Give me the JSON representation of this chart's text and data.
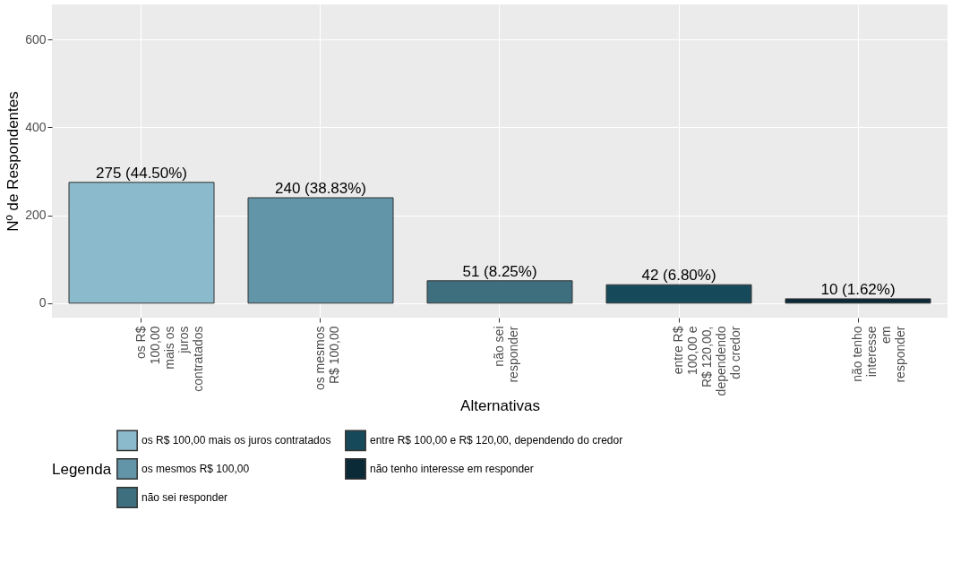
{
  "chart_data": {
    "type": "bar",
    "xlabel": "Alternativas",
    "ylabel": "Nº de Respondentes",
    "legend_title": "Legenda",
    "categories": [
      "os R$\n100,00\nmais os\njuros\ncontratados",
      "os mesmos\nR$ 100,00",
      "não sei\nresponder",
      "entre R$\n100,00 e\nR$ 120,00,\ndependendo\ndo credor",
      "não tenho\ninteresse\nem\nresponder"
    ],
    "series": [
      {
        "name": "os R$ 100,00 mais os juros contratados",
        "color": "#8bbacd",
        "values": [
          275,
          null,
          null,
          null,
          null
        ]
      },
      {
        "name": "os mesmos R$ 100,00",
        "color": "#6295a8",
        "values": [
          null,
          240,
          null,
          null,
          null
        ]
      },
      {
        "name": "não sei responder",
        "color": "#3e6f7f",
        "values": [
          null,
          null,
          51,
          null,
          null
        ]
      },
      {
        "name": "entre R$ 100,00 e R$ 120,00, dependendo do credor",
        "color": "#164a5a",
        "values": [
          null,
          null,
          null,
          42,
          null
        ]
      },
      {
        "name": "não tenho interesse em responder",
        "color": "#0a2a38",
        "values": [
          null,
          null,
          null,
          null,
          10
        ]
      }
    ],
    "value_labels": [
      "275 (44.50%)",
      "240 (38.83%)",
      "51 (8.25%)",
      "42 (6.80%)",
      "10 (1.62%)"
    ],
    "ylim": [
      -33,
      680
    ],
    "yticks": [
      0,
      200,
      400,
      600
    ],
    "grid": true,
    "legend": "bottom"
  }
}
